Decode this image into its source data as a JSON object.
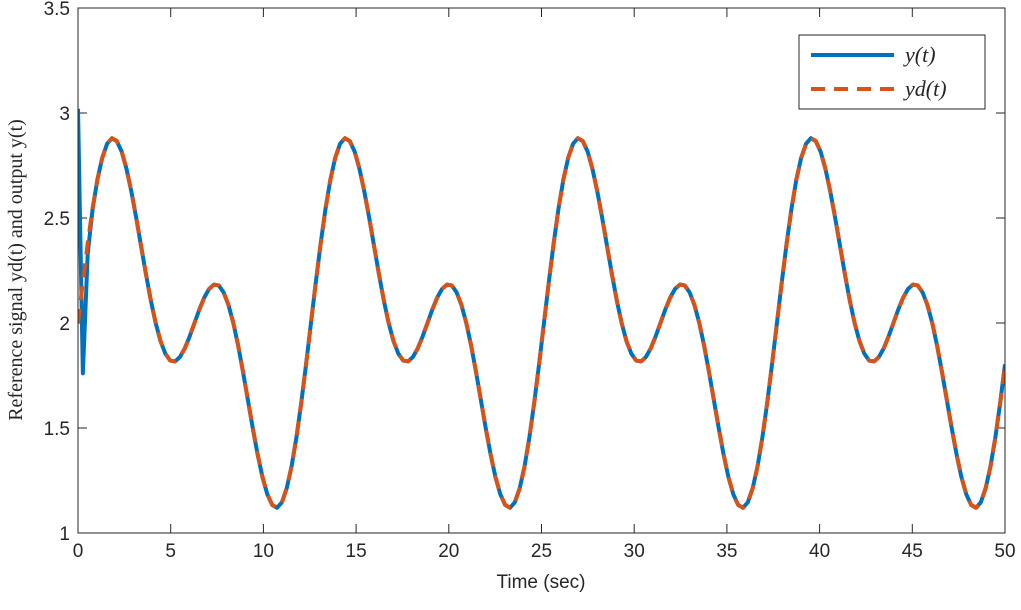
{
  "chart_data": {
    "type": "line",
    "xlabel": "Time (sec)",
    "ylabel": "Reference signal yd(t) and output y(t)",
    "xlim": [
      0,
      50
    ],
    "ylim": [
      1,
      3.5
    ],
    "xticks": [
      0,
      5,
      10,
      15,
      20,
      25,
      30,
      35,
      40,
      45,
      50
    ],
    "yticks": [
      1,
      1.5,
      2,
      2.5,
      3,
      3.5
    ],
    "legend": "upper right",
    "x": [
      0,
      0.262,
      0.524,
      0.785,
      1.047,
      1.309,
      1.571,
      1.833,
      2.094,
      2.356,
      2.618,
      2.88,
      3.142,
      3.403,
      3.665,
      3.927,
      4.189,
      4.451,
      4.712,
      4.974,
      5.236,
      5.498,
      5.76,
      6.021,
      6.283,
      6.545,
      6.807,
      7.069,
      7.33,
      7.592,
      7.854,
      8.116,
      8.378,
      8.639,
      8.901,
      9.163,
      9.425,
      9.687,
      9.948,
      10.21,
      10.472,
      10.734,
      10.996,
      11.257,
      11.519,
      11.781,
      12.043,
      12.305,
      12.566,
      12.828,
      13.09,
      13.352,
      13.614,
      13.875,
      14.137,
      14.399,
      14.661,
      14.923,
      15.184,
      15.446,
      15.708,
      15.97,
      16.232,
      16.493,
      16.755,
      17.017,
      17.279,
      17.541,
      17.802,
      18.064,
      18.326,
      18.588,
      18.85,
      19.111,
      19.373,
      19.635,
      19.897,
      20.159,
      20.42,
      20.682,
      20.944,
      21.206,
      21.468,
      21.729,
      21.991,
      22.253,
      22.515,
      22.777,
      23.038,
      23.3,
      23.562,
      23.824,
      24.086,
      24.347,
      24.609,
      24.871,
      25.133,
      25.395,
      25.656,
      25.918,
      26.18,
      26.442,
      26.704,
      26.965,
      27.227,
      27.489,
      27.751,
      28.013,
      28.274,
      28.536,
      28.798,
      29.06,
      29.322,
      29.583,
      29.845,
      30.107,
      30.369,
      30.631,
      30.892,
      31.154,
      31.416,
      31.678,
      31.94,
      32.201,
      32.463,
      32.725,
      32.987,
      33.249,
      33.51,
      33.772,
      34.034,
      34.296,
      34.558,
      34.819,
      35.081,
      35.343,
      35.605,
      35.867,
      36.128,
      36.39,
      36.652,
      36.914,
      37.176,
      37.437,
      37.699,
      37.961,
      38.223,
      38.485,
      38.746,
      39.008,
      39.27,
      39.532,
      39.794,
      40.055,
      40.317,
      40.579,
      40.841,
      41.103,
      41.364,
      41.626,
      41.888,
      42.15,
      42.412,
      42.673,
      42.935,
      43.197,
      43.459,
      43.72,
      43.982,
      44.244,
      44.506,
      44.768,
      45.029,
      45.291,
      45.553,
      45.815,
      46.077,
      46.338,
      46.6,
      46.862,
      47.124,
      47.386,
      47.647,
      47.909,
      48.171,
      48.433,
      48.695,
      48.956,
      49.218,
      49.48,
      49.742,
      50
    ],
    "series": [
      {
        "name": "y(t)",
        "color": "#0072bd",
        "dash": "solid",
        "values": [
          3.02,
          1.76,
          2.33,
          2.54,
          2.683,
          2.787,
          2.854,
          2.88,
          2.866,
          2.816,
          2.733,
          2.625,
          2.5,
          2.366,
          2.233,
          2.108,
          2,
          1.914,
          1.854,
          1.821,
          1.817,
          1.838,
          1.879,
          1.936,
          2,
          2.064,
          2.121,
          2.162,
          2.183,
          2.179,
          2.146,
          2.086,
          2,
          1.892,
          1.767,
          1.634,
          1.5,
          1.375,
          1.267,
          1.185,
          1.134,
          1.12,
          1.146,
          1.213,
          1.317,
          1.455,
          1.621,
          1.805,
          2,
          2.195,
          2.379,
          2.545,
          2.683,
          2.787,
          2.854,
          2.88,
          2.866,
          2.816,
          2.733,
          2.625,
          2.5,
          2.366,
          2.233,
          2.108,
          2,
          1.914,
          1.854,
          1.821,
          1.817,
          1.838,
          1.879,
          1.936,
          2,
          2.064,
          2.121,
          2.162,
          2.183,
          2.179,
          2.146,
          2.086,
          2,
          1.892,
          1.767,
          1.634,
          1.5,
          1.375,
          1.267,
          1.185,
          1.134,
          1.12,
          1.146,
          1.213,
          1.317,
          1.455,
          1.621,
          1.805,
          2,
          2.195,
          2.379,
          2.545,
          2.683,
          2.787,
          2.854,
          2.88,
          2.866,
          2.816,
          2.733,
          2.625,
          2.5,
          2.366,
          2.233,
          2.108,
          2,
          1.914,
          1.854,
          1.821,
          1.817,
          1.838,
          1.879,
          1.936,
          2,
          2.064,
          2.121,
          2.162,
          2.183,
          2.179,
          2.146,
          2.086,
          2,
          1.892,
          1.767,
          1.634,
          1.5,
          1.375,
          1.267,
          1.185,
          1.134,
          1.12,
          1.146,
          1.213,
          1.317,
          1.455,
          1.621,
          1.805,
          2,
          2.195,
          2.379,
          2.545,
          2.683,
          2.787,
          2.854,
          2.88,
          2.866,
          2.816,
          2.733,
          2.625,
          2.5,
          2.366,
          2.233,
          2.108,
          2,
          1.914,
          1.854,
          1.821,
          1.817,
          1.838,
          1.879,
          1.936,
          2,
          2.064,
          2.121,
          2.162,
          2.183,
          2.179,
          2.146,
          2.086,
          2,
          1.892,
          1.767,
          1.634,
          1.5,
          1.375,
          1.267,
          1.185,
          1.134,
          1.12,
          1.146,
          1.213,
          1.317,
          1.455,
          1.621,
          1.803
        ]
      },
      {
        "name": "yd(t)",
        "color": "#d95319",
        "dash": "dashed",
        "values": [
          2,
          2.195,
          2.379,
          2.545,
          2.683,
          2.787,
          2.854,
          2.88,
          2.866,
          2.816,
          2.733,
          2.625,
          2.5,
          2.366,
          2.233,
          2.108,
          2,
          1.914,
          1.854,
          1.821,
          1.817,
          1.838,
          1.879,
          1.936,
          2,
          2.064,
          2.121,
          2.162,
          2.183,
          2.179,
          2.146,
          2.086,
          2,
          1.892,
          1.767,
          1.634,
          1.5,
          1.375,
          1.267,
          1.185,
          1.134,
          1.12,
          1.146,
          1.213,
          1.317,
          1.455,
          1.621,
          1.805,
          2,
          2.195,
          2.379,
          2.545,
          2.683,
          2.787,
          2.854,
          2.88,
          2.866,
          2.816,
          2.733,
          2.625,
          2.5,
          2.366,
          2.233,
          2.108,
          2,
          1.914,
          1.854,
          1.821,
          1.817,
          1.838,
          1.879,
          1.936,
          2,
          2.064,
          2.121,
          2.162,
          2.183,
          2.179,
          2.146,
          2.086,
          2,
          1.892,
          1.767,
          1.634,
          1.5,
          1.375,
          1.267,
          1.185,
          1.134,
          1.12,
          1.146,
          1.213,
          1.317,
          1.455,
          1.621,
          1.805,
          2,
          2.195,
          2.379,
          2.545,
          2.683,
          2.787,
          2.854,
          2.88,
          2.866,
          2.816,
          2.733,
          2.625,
          2.5,
          2.366,
          2.233,
          2.108,
          2,
          1.914,
          1.854,
          1.821,
          1.817,
          1.838,
          1.879,
          1.936,
          2,
          2.064,
          2.121,
          2.162,
          2.183,
          2.179,
          2.146,
          2.086,
          2,
          1.892,
          1.767,
          1.634,
          1.5,
          1.375,
          1.267,
          1.185,
          1.134,
          1.12,
          1.146,
          1.213,
          1.317,
          1.455,
          1.621,
          1.805,
          2,
          2.195,
          2.379,
          2.545,
          2.683,
          2.787,
          2.854,
          2.88,
          2.866,
          2.816,
          2.733,
          2.625,
          2.5,
          2.366,
          2.233,
          2.108,
          2,
          1.914,
          1.854,
          1.821,
          1.817,
          1.838,
          1.879,
          1.936,
          2,
          2.064,
          2.121,
          2.162,
          2.183,
          2.179,
          2.146,
          2.086,
          2,
          1.892,
          1.767,
          1.634,
          1.5,
          1.375,
          1.267,
          1.185,
          1.134,
          1.12,
          1.146,
          1.213,
          1.317,
          1.455,
          1.621,
          1.803
        ]
      }
    ]
  }
}
